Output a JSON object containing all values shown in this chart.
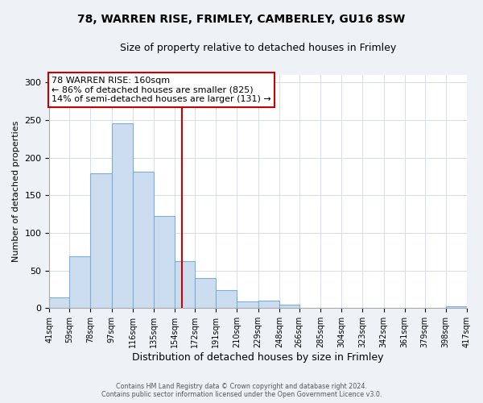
{
  "title": "78, WARREN RISE, FRIMLEY, CAMBERLEY, GU16 8SW",
  "subtitle": "Size of property relative to detached houses in Frimley",
  "xlabel": "Distribution of detached houses by size in Frimley",
  "ylabel": "Number of detached properties",
  "bar_values": [
    14,
    69,
    179,
    246,
    182,
    123,
    62,
    40,
    24,
    9,
    10,
    5,
    0,
    0,
    0,
    0,
    0,
    0,
    0,
    2
  ],
  "bar_labels": [
    "41sqm",
    "59sqm",
    "78sqm",
    "97sqm",
    "116sqm",
    "135sqm",
    "154sqm",
    "172sqm",
    "191sqm",
    "210sqm",
    "229sqm",
    "248sqm",
    "266sqm",
    "285sqm",
    "304sqm",
    "323sqm",
    "342sqm",
    "361sqm",
    "379sqm",
    "398sqm",
    "417sqm"
  ],
  "bin_edges": [
    41,
    59,
    78,
    97,
    116,
    135,
    154,
    172,
    191,
    210,
    229,
    248,
    266,
    285,
    304,
    323,
    342,
    361,
    379,
    398,
    417
  ],
  "bar_color": "#cdddf0",
  "bar_edge_color": "#7baed6",
  "reference_line_x": 160,
  "reference_line_color": "#cc0000",
  "ylim": [
    0,
    310
  ],
  "yticks": [
    0,
    50,
    100,
    150,
    200,
    250,
    300
  ],
  "annotation_title": "78 WARREN RISE: 160sqm",
  "annotation_line1": "← 86% of detached houses are smaller (825)",
  "annotation_line2": "14% of semi-detached houses are larger (131) →",
  "annotation_box_color": "#ffffff",
  "annotation_box_edge_color": "#cc0000",
  "footer_line1": "Contains HM Land Registry data © Crown copyright and database right 2024.",
  "footer_line2": "Contains public sector information licensed under the Open Government Licence v3.0.",
  "background_color": "#eef2f7",
  "plot_background_color": "#ffffff",
  "grid_color": "#d0d8e4"
}
